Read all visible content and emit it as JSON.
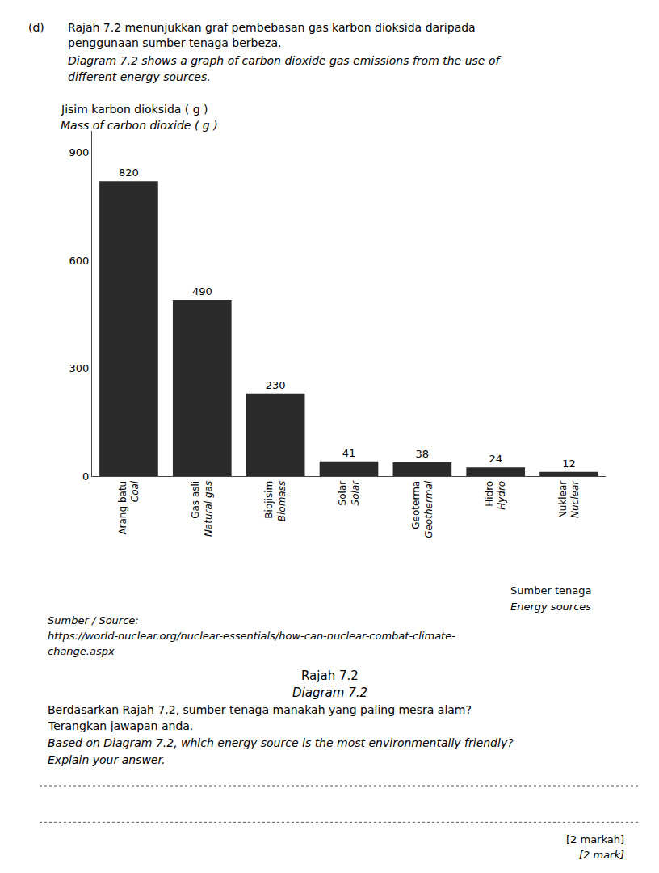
{
  "chart_data": {
    "type": "bar",
    "title": "Rajah 7.2",
    "subtitle": "Diagram 7.2",
    "ylabel": [
      "Jisim karbon dioksida ( g )",
      "Mass of carbon dioxide ( g )"
    ],
    "xlabel": [
      "Sumber tenaga",
      "Energy sources"
    ],
    "categories": [
      [
        "Arang batu",
        "Coal"
      ],
      [
        "Gas asli",
        "Natural gas"
      ],
      [
        "Biojisim",
        "Biomass"
      ],
      [
        "Solar",
        "Solar"
      ],
      [
        "Geoterma",
        "Geothermal"
      ],
      [
        "Hidro",
        "Hydro"
      ],
      [
        "Nuklear",
        "Nuclear"
      ]
    ],
    "values": [
      820,
      490,
      230,
      41,
      38,
      24,
      12
    ],
    "color": "#2b2b2b",
    "ylim": [
      0,
      960
    ],
    "yticks": [
      0,
      300,
      600,
      900
    ],
    "grid": false,
    "data_labels": true,
    "annotations": [
      "(d)",
      "Rajah 7.2 menunjukkan graf pembebasan gas karbon dioksida daripada",
      "penggunaan sumber tenaga berbeza.",
      "Diagram 7.2 shows a graph of carbon dioxide gas emissions from the use of",
      "different energy sources.",
      "Sumber / Source:",
      "https://world-nuclear.org/nuclear-essentials/how-can-nuclear-combat-climate-",
      "change.aspx",
      "Berdasarkan Rajah 7.2, sumber tenaga manakah yang paling mesra alam?",
      "Terangkan jawapan anda.",
      "Based on Diagram 7.2, which energy source is the most environmentally friendly?",
      "Explain your answer.",
      "[2 markah]",
      "[2 mark]"
    ]
  }
}
